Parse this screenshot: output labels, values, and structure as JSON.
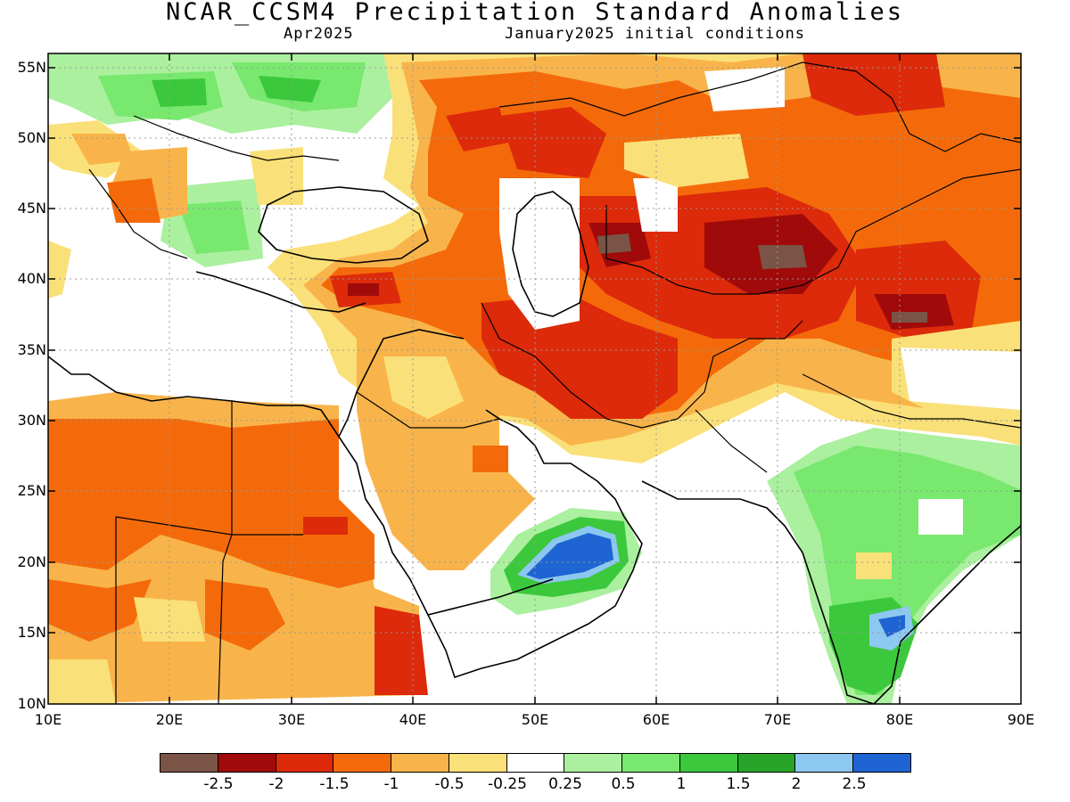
{
  "header": {
    "title": "NCAR_CCSM4 Precipitation Standard Anomalies",
    "valid_month": "Apr2025",
    "init": "January2025 initial conditions"
  },
  "axes": {
    "lat_labels": [
      "55N",
      "50N",
      "45N",
      "40N",
      "35N",
      "30N",
      "25N",
      "20N",
      "15N",
      "10N"
    ],
    "lon_labels": [
      "10E",
      "20E",
      "30E",
      "40E",
      "50E",
      "60E",
      "70E",
      "80E",
      "90E"
    ],
    "lon_range": [
      10,
      90
    ],
    "lat_range": [
      10,
      56
    ]
  },
  "legend": {
    "colors": [
      "#7a5446",
      "#a00a0a",
      "#dc2a0a",
      "#f46a0a",
      "#f8b44a",
      "#fae078",
      "#ffffff",
      "#aaf09e",
      "#78e86e",
      "#3cc83c",
      "#28a428",
      "#8cc8f0",
      "#1e64d2"
    ],
    "tick_labels": [
      "-2.5",
      "-2",
      "-1.5",
      "-1",
      "-0.5",
      "-0.25",
      "0.25",
      "0.5",
      "1",
      "1.5",
      "2",
      "2.5"
    ]
  },
  "colors": {
    "background": "#ffffff",
    "frame": "#000000",
    "grid": "#999999"
  }
}
